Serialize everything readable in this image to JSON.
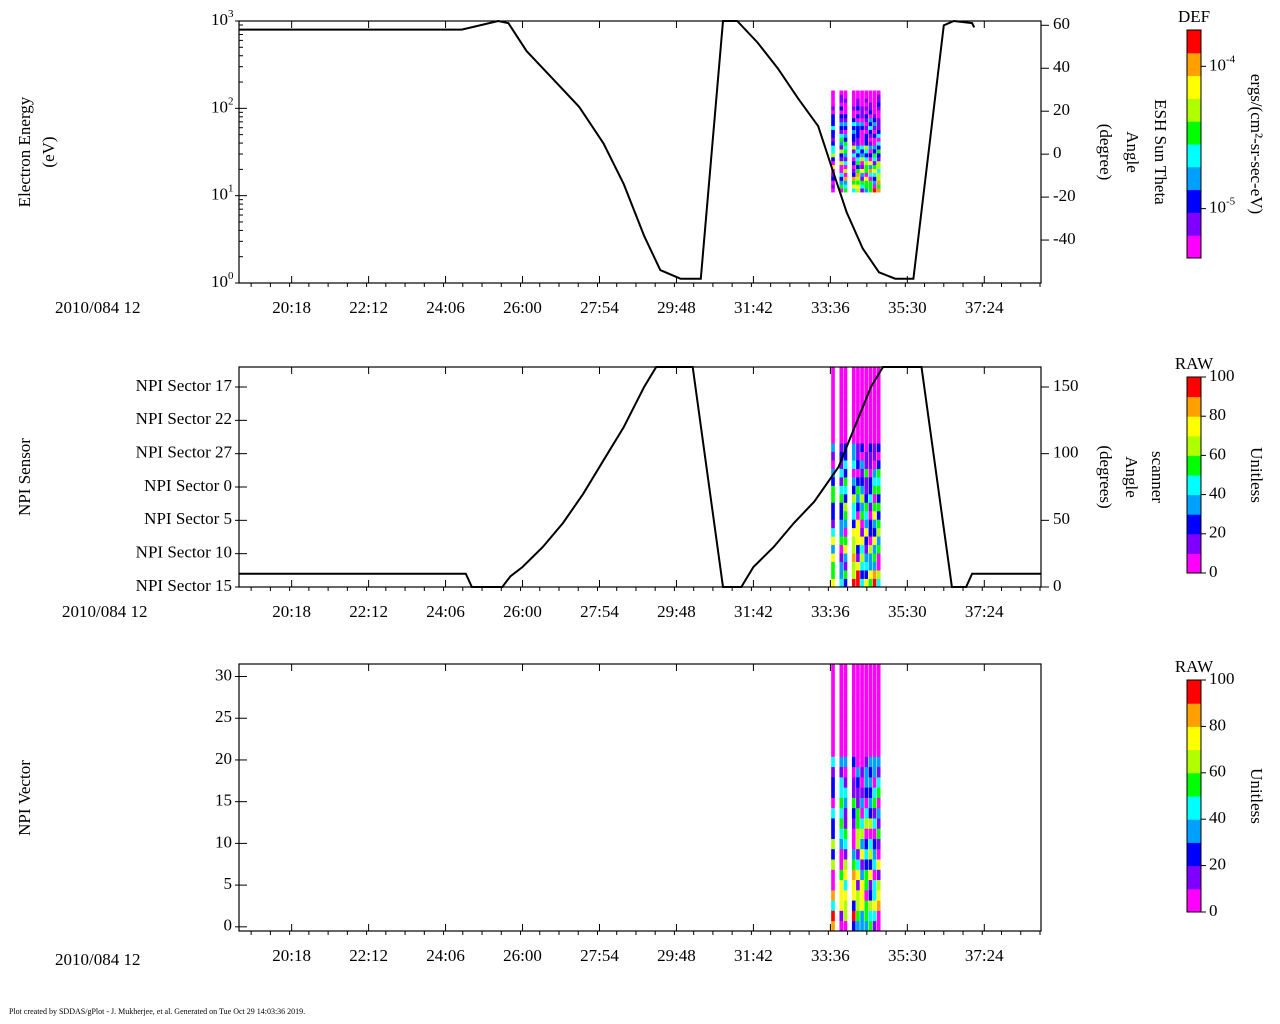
{
  "footer": "Plot created by SDDAS/gPlot - J. Mukherjee, et al.  Generated on Tue Oct 29 14:03:36 2019.",
  "colormap": [
    "#ff00ff",
    "#8000ff",
    "#0000ff",
    "#00a0ff",
    "#00ffff",
    "#00ff00",
    "#b0ff00",
    "#ffff00",
    "#ffa000",
    "#ff0000"
  ],
  "chart_data": [
    {
      "type": "heatmap",
      "id": "panel1",
      "title": "",
      "date_label": "2010/084 12",
      "x_range_min": [
        19.0,
        38.8
      ],
      "x_tick_values": [
        20.3,
        22.2,
        24.1,
        26.0,
        27.9,
        29.8,
        31.7,
        33.6,
        35.5,
        37.4
      ],
      "x_tick_labels": [
        "20:18",
        "22:12",
        "24:06",
        "26:00",
        "27:54",
        "29:48",
        "31:42",
        "33:36",
        "35:30",
        "37:24"
      ],
      "ylabel": [
        "Electron Energy",
        "(eV)"
      ],
      "y_scale": "log",
      "ylim": [
        1,
        1000
      ],
      "y_ticks": [
        1,
        10,
        100,
        1000
      ],
      "y_tick_labels": [
        {
          "base": "10",
          "exp": "0"
        },
        {
          "base": "10",
          "exp": "1"
        },
        {
          "base": "10",
          "exp": "2"
        },
        {
          "base": "10",
          "exp": "3"
        }
      ],
      "right_axis": {
        "label": [
          "ESH Sun Theta",
          "Angle",
          "(degree)"
        ],
        "ylim": [
          -60,
          62
        ],
        "ticks": [
          -40,
          -20,
          0,
          20,
          40,
          60
        ],
        "tick_labels": [
          "-40",
          "-20",
          "0",
          "20",
          "40",
          "60"
        ]
      },
      "colorbar": {
        "title": "DEF",
        "label": "ergs/(cm²-sr-sec-eV)",
        "scale": "log",
        "range": [
          4.5e-06,
          0.00018
        ],
        "ticks": [
          1e-05,
          0.0001
        ],
        "tick_labels": [
          {
            "base": "10",
            "exp": "-5"
          },
          {
            "base": "10",
            "exp": "-4"
          }
        ]
      },
      "heatmap": {
        "x_start": 33.62,
        "x_end": 34.85,
        "columns": 12,
        "y_low": 11,
        "y_high": 160,
        "gap_every": 2,
        "min_value_limit": 0.08
      },
      "line": [
        [
          19.0,
          58
        ],
        [
          24.5,
          58
        ],
        [
          25.4,
          62
        ],
        [
          25.65,
          61
        ],
        [
          26.1,
          48
        ],
        [
          26.8,
          34
        ],
        [
          27.4,
          22
        ],
        [
          28.0,
          5
        ],
        [
          28.5,
          -14
        ],
        [
          29.0,
          -38
        ],
        [
          29.4,
          -54
        ],
        [
          29.9,
          -58
        ],
        [
          30.4,
          -58
        ],
        [
          30.95,
          62
        ],
        [
          31.3,
          62
        ],
        [
          31.8,
          52
        ],
        [
          32.3,
          40
        ],
        [
          32.8,
          26
        ],
        [
          33.3,
          13
        ],
        [
          33.7,
          -10
        ],
        [
          34.0,
          -27
        ],
        [
          34.4,
          -44
        ],
        [
          34.8,
          -55
        ],
        [
          35.2,
          -58
        ],
        [
          35.65,
          -58
        ],
        [
          36.4,
          60
        ],
        [
          36.65,
          62
        ],
        [
          37.1,
          61
        ],
        [
          37.15,
          59
        ]
      ]
    },
    {
      "type": "heatmap",
      "id": "panel2",
      "date_label": "2010/084 12",
      "x_range_min": [
        19.0,
        38.8
      ],
      "x_tick_values": [
        20.3,
        22.2,
        24.1,
        26.0,
        27.9,
        29.8,
        31.7,
        33.6,
        35.5,
        37.4
      ],
      "x_tick_labels": [
        "20:18",
        "22:12",
        "24:06",
        "26:00",
        "27:54",
        "29:48",
        "31:42",
        "33:36",
        "35:30",
        "37:24"
      ],
      "ylabel": [
        "NPI Sensor"
      ],
      "y_scale": "linear",
      "ylim": [
        0,
        6.6
      ],
      "y_ticks": [
        0,
        1,
        2,
        3,
        4,
        5,
        6
      ],
      "y_tick_labels": [
        "NPI Sector 15",
        "NPI Sector 10",
        "NPI Sector 5",
        "NPI Sector 0",
        "NPI Sector 27",
        "NPI Sector 22",
        "NPI Sector 17"
      ],
      "right_axis": {
        "label": [
          "scanner",
          "Angle",
          "(degrees)"
        ],
        "ylim": [
          0,
          165
        ],
        "ticks": [
          0,
          50,
          100,
          150
        ],
        "tick_labels": [
          "0",
          "50",
          "100",
          "150"
        ]
      },
      "colorbar": {
        "title": "RAW",
        "label": "Unitless",
        "scale": "linear",
        "range": [
          0,
          100
        ],
        "ticks": [
          0,
          20,
          40,
          60,
          80,
          100
        ],
        "tick_labels": [
          "0",
          "20",
          "40",
          "60",
          "80",
          "100"
        ]
      },
      "heatmap": {
        "x_start": 33.62,
        "x_end": 34.85,
        "columns": 12,
        "y_low": 0,
        "y_high": 6.6,
        "gap_every": 2,
        "min_value_limit": 2.5
      },
      "line": [
        [
          19.0,
          10
        ],
        [
          24.6,
          10
        ],
        [
          24.75,
          0
        ],
        [
          25.5,
          0
        ],
        [
          25.7,
          8
        ],
        [
          26.0,
          15
        ],
        [
          26.5,
          30
        ],
        [
          27.0,
          48
        ],
        [
          27.5,
          70
        ],
        [
          28.0,
          95
        ],
        [
          28.5,
          120
        ],
        [
          29.0,
          150
        ],
        [
          29.3,
          165
        ],
        [
          30.2,
          165
        ],
        [
          30.95,
          0
        ],
        [
          31.4,
          0
        ],
        [
          31.7,
          15
        ],
        [
          32.2,
          30
        ],
        [
          32.7,
          48
        ],
        [
          33.2,
          64
        ],
        [
          33.8,
          90
        ],
        [
          34.2,
          120
        ],
        [
          34.6,
          150
        ],
        [
          34.9,
          165
        ],
        [
          35.85,
          165
        ],
        [
          36.6,
          0
        ],
        [
          36.95,
          0
        ],
        [
          37.1,
          10
        ],
        [
          38.8,
          10
        ]
      ]
    },
    {
      "type": "heatmap",
      "id": "panel3",
      "date_label": "2010/084 12",
      "x_range_min": [
        19.0,
        38.8
      ],
      "x_tick_values": [
        20.3,
        22.2,
        24.1,
        26.0,
        27.9,
        29.8,
        31.7,
        33.6,
        35.5,
        37.4
      ],
      "x_tick_labels": [
        "20:18",
        "22:12",
        "24:06",
        "26:00",
        "27:54",
        "29:48",
        "31:42",
        "33:36",
        "35:30",
        "37:24"
      ],
      "ylabel": [
        "NPI Vector"
      ],
      "y_scale": "linear",
      "ylim": [
        -0.5,
        31.5
      ],
      "y_ticks": [
        0,
        5,
        10,
        15,
        20,
        25,
        30
      ],
      "y_tick_labels": [
        "0",
        "5",
        "10",
        "15",
        "20",
        "25",
        "30"
      ],
      "colorbar": {
        "title": "RAW",
        "label": "Unitless",
        "scale": "linear",
        "range": [
          0,
          100
        ],
        "ticks": [
          0,
          20,
          40,
          60,
          80,
          100
        ],
        "tick_labels": [
          "0",
          "20",
          "40",
          "60",
          "80",
          "100"
        ]
      },
      "heatmap": {
        "x_start": 33.62,
        "x_end": 34.85,
        "columns": 12,
        "y_low": -0.5,
        "y_high": 31.5,
        "gap_every": 2,
        "min_value_limit": 18
      }
    }
  ]
}
